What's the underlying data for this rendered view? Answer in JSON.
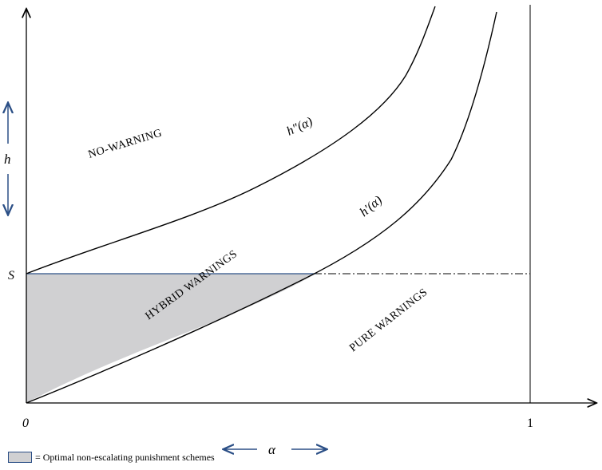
{
  "axes": {
    "y_label_S": "S",
    "h_label": "h",
    "x_origin_label": "0",
    "x_one_label": "1",
    "alpha_label": "α"
  },
  "curves": {
    "h_double_prime": "h″(α)",
    "h_prime": "h′(α)"
  },
  "regions": {
    "no_warning": "NO-WARNING",
    "hybrid": "HYBRID WARNINGS",
    "pure": "PURE WARNINGS"
  },
  "legend": {
    "text": "= Optimal non-escalating punishment schemes"
  },
  "colors": {
    "shade_fill": "#d0d0d2",
    "arrow_blue": "#2b4f86",
    "line": "#000000"
  }
}
